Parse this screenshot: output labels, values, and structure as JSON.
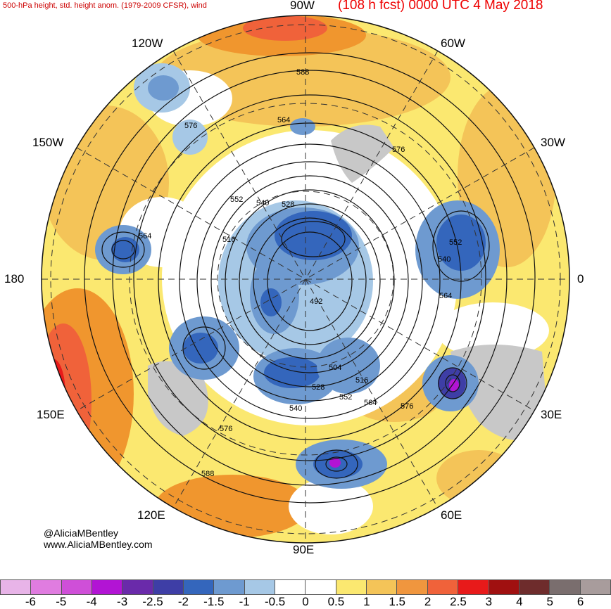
{
  "header": {
    "left_title": "500-hPa height, std. height anom. (1979-2009 CFSR), wind",
    "right_title": "(108 h fcst) 0000 UTC 4 May 2018"
  },
  "longitudes": {
    "lon_90w": "90W",
    "lon_60w": "60W",
    "lon_120w": "120W",
    "lon_150w": "150W",
    "lon_30w": "30W",
    "lon_180": "180",
    "lon_0": "0",
    "lon_150e": "150E",
    "lon_30e": "30E",
    "lon_120e": "120E",
    "lon_60e": "60E",
    "lon_90e": "90E"
  },
  "contour_labels": [
    "588",
    "576",
    "564",
    "552",
    "540",
    "528",
    "516",
    "492",
    "564",
    "552",
    "540",
    "564",
    "504",
    "516",
    "528",
    "552",
    "564",
    "540",
    "576",
    "576",
    "588",
    "576"
  ],
  "credits": {
    "handle": "@AliciaMBentley",
    "site": "www.AliciaMBentley.com"
  },
  "colorbar": {
    "colors": [
      "#e8b4e8",
      "#e07ce0",
      "#cf4fd8",
      "#b214d4",
      "#6a2aaa",
      "#3e3ea6",
      "#3466bc",
      "#6e9ad0",
      "#a6c8e6",
      "#ffffff",
      "#ffffff",
      "#fbe870",
      "#f4c458",
      "#f0963e",
      "#f0623a",
      "#e81a1a",
      "#a01010",
      "#6e2c2c",
      "#7a6e6e",
      "#a89c9c"
    ],
    "ticks": [
      "-6",
      "-5",
      "-4",
      "-3",
      "-2.5",
      "-2",
      "-1.5",
      "-1",
      "-0.5",
      "0",
      "0.5",
      "1",
      "1.5",
      "2",
      "2.5",
      "3",
      "4",
      "5",
      "6"
    ]
  },
  "palette": {
    "land": "#c8c8c8",
    "positive_anom": "#f4c458",
    "negative_anom": "#3466bc",
    "title_red": "#ee0000"
  }
}
